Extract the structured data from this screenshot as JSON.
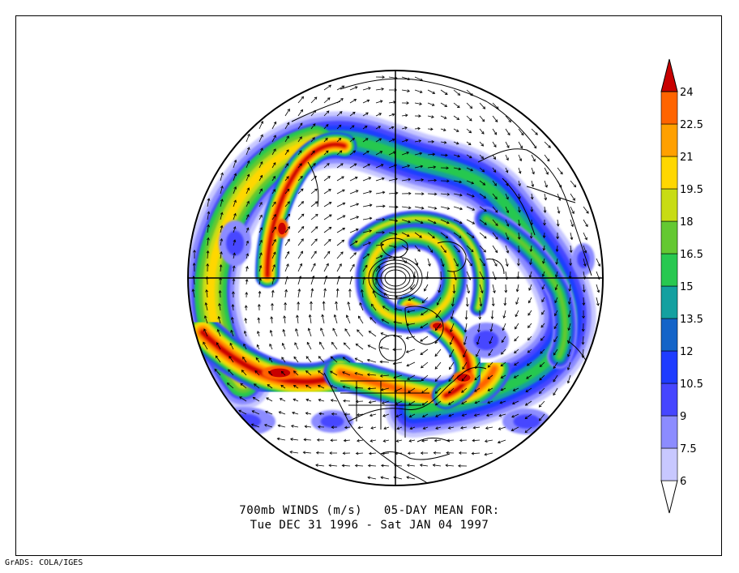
{
  "title": {
    "line1": "700mb WINDS (m/s)   05-DAY MEAN FOR:",
    "line2": "Tue DEC 31 1996 - Sat JAN 04 1997"
  },
  "credit": "GrADS: COLA/IGES",
  "legend": {
    "labels": [
      "6",
      "7.5",
      "9",
      "10.5",
      "12",
      "13.5",
      "15",
      "16.5",
      "18",
      "19.5",
      "21",
      "22.5",
      "24"
    ],
    "colors": [
      "#ffffff",
      "#c8c8ff",
      "#8c8cff",
      "#4646ff",
      "#1e3cff",
      "#1464c8",
      "#14a0a0",
      "#28c850",
      "#64c832",
      "#c8dc14",
      "#ffd700",
      "#ffa000",
      "#ff6400",
      "#c80000"
    ]
  },
  "map": {
    "projection": "polar stereographic, northern hemisphere",
    "colors": {
      "land_outline": "#000000",
      "graticule": "#000000",
      "arrows": "#000000"
    },
    "jet_regions": [
      {
        "region": "north-pacific",
        "max_speed": 24
      },
      {
        "region": "western-atlantic",
        "max_speed": 22.5
      },
      {
        "region": "north-atlantic",
        "max_speed": 24
      },
      {
        "region": "siberia",
        "max_speed": 22.5
      },
      {
        "region": "polar-vortex",
        "max_speed": 19.5
      }
    ]
  }
}
